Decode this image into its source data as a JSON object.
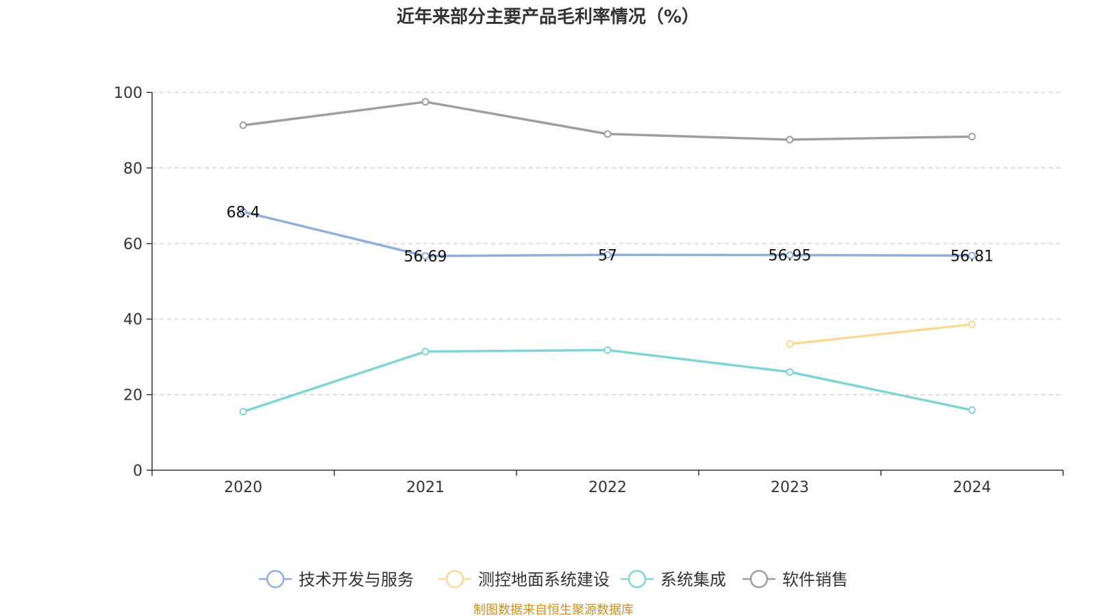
{
  "chart_data": {
    "type": "line",
    "title": "近年来部分主要产品毛利率情况（%）",
    "xlabel": "",
    "ylabel": "",
    "categories": [
      "2020",
      "2021",
      "2022",
      "2023",
      "2024"
    ],
    "ylim": [
      0,
      100
    ],
    "yticks": [
      0,
      20,
      40,
      60,
      80,
      100
    ],
    "grid": true,
    "legend_position": "bottom",
    "series": [
      {
        "name": "技术开发与服务",
        "color": "#8eaedc",
        "values": [
          68.4,
          56.69,
          57,
          56.95,
          56.81
        ],
        "labels": [
          "68.4",
          "56.69",
          "57",
          "56.95",
          "56.81"
        ]
      },
      {
        "name": "测控地面系统建设",
        "color": "#fad898",
        "values": [
          null,
          null,
          null,
          33.4,
          38.6
        ]
      },
      {
        "name": "系统集成",
        "color": "#82d4d4",
        "values": [
          15.5,
          31.4,
          31.8,
          26.0,
          15.9
        ]
      },
      {
        "name": "软件销售",
        "color": "#9e9e9e",
        "values": [
          91.3,
          97.5,
          89.0,
          87.5,
          88.3
        ]
      }
    ],
    "source": "制图数据来自恒生聚源数据库",
    "source_color": "#c8901e"
  }
}
